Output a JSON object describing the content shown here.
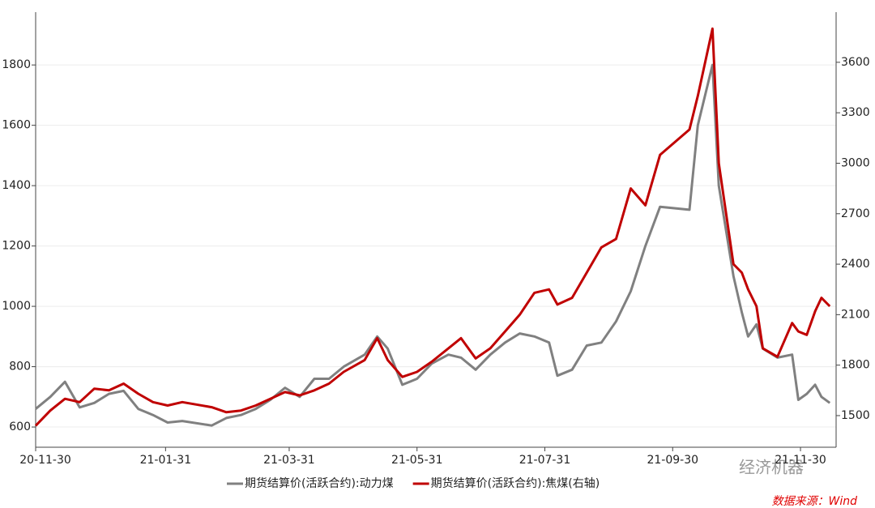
{
  "chart_data": {
    "type": "line",
    "x": [
      "20-11-30",
      "20-12-07",
      "20-12-14",
      "20-12-21",
      "20-12-28",
      "21-01-04",
      "21-01-11",
      "21-01-18",
      "21-01-25",
      "21-02-01",
      "21-02-08",
      "21-02-22",
      "21-03-01",
      "21-03-08",
      "21-03-15",
      "21-03-22",
      "21-03-29",
      "21-04-05",
      "21-04-12",
      "21-04-19",
      "21-04-26",
      "21-05-06",
      "21-05-12",
      "21-05-17",
      "21-05-24",
      "21-05-31",
      "21-06-07",
      "21-06-15",
      "21-06-21",
      "21-06-28",
      "21-07-05",
      "21-07-12",
      "21-07-19",
      "21-07-26",
      "21-08-02",
      "21-08-06",
      "21-08-13",
      "21-08-20",
      "21-08-27",
      "21-09-03",
      "21-09-10",
      "21-09-17",
      "21-09-24",
      "21-10-08",
      "21-10-12",
      "21-10-19",
      "21-10-22",
      "21-10-29",
      "21-11-02",
      "21-11-05",
      "21-11-09",
      "21-11-12",
      "21-11-19",
      "21-11-26",
      "21-11-29",
      "21-12-03",
      "21-12-07",
      "21-12-10",
      "21-12-14"
    ],
    "series": [
      {
        "name": "期货结算价(活跃合约):动力煤",
        "color": "#808080",
        "axis": "y",
        "values": [
          660,
          700,
          750,
          665,
          680,
          710,
          720,
          660,
          640,
          615,
          620,
          605,
          630,
          640,
          660,
          690,
          730,
          700,
          760,
          760,
          800,
          840,
          900,
          860,
          740,
          760,
          810,
          840,
          830,
          790,
          840,
          880,
          910,
          900,
          880,
          770,
          790,
          870,
          880,
          950,
          1050,
          1200,
          1330,
          1320,
          1600,
          1800,
          1400,
          1100,
          980,
          900,
          940,
          860,
          830,
          840,
          690,
          710,
          740,
          700,
          680
        ]
      },
      {
        "name": "期货结算价(活跃合约):焦煤(右轴)",
        "color": "#c00000",
        "axis": "y2",
        "values": [
          1440,
          1530,
          1600,
          1580,
          1660,
          1650,
          1690,
          1630,
          1580,
          1560,
          1580,
          1550,
          1520,
          1530,
          1560,
          1600,
          1640,
          1620,
          1650,
          1690,
          1760,
          1830,
          1960,
          1830,
          1730,
          1760,
          1820,
          1900,
          1960,
          1840,
          1900,
          2000,
          2100,
          2230,
          2250,
          2160,
          2200,
          2350,
          2500,
          2550,
          2850,
          2750,
          3050,
          3200,
          3400,
          3800,
          3000,
          2400,
          2350,
          2250,
          2150,
          1900,
          1850,
          2050,
          2000,
          1980,
          2120,
          2200,
          2150
        ]
      }
    ],
    "xlim": [
      "20-11-30",
      "21-12-17"
    ],
    "xticks": [
      "20-11-30",
      "21-01-31",
      "21-03-31",
      "21-05-31",
      "21-07-31",
      "21-09-30",
      "21-11-30"
    ],
    "ylim": [
      533,
      1975
    ],
    "yticks": [
      600,
      800,
      1000,
      1200,
      1400,
      1600,
      1800
    ],
    "y2lim": [
      1312,
      3898
    ],
    "y2ticks": [
      1500,
      1800,
      2100,
      2400,
      2700,
      3000,
      3300,
      3600
    ],
    "grid": true,
    "legend": "bottom",
    "annotations": [
      "经济机器",
      "数据来源：Wind"
    ]
  }
}
